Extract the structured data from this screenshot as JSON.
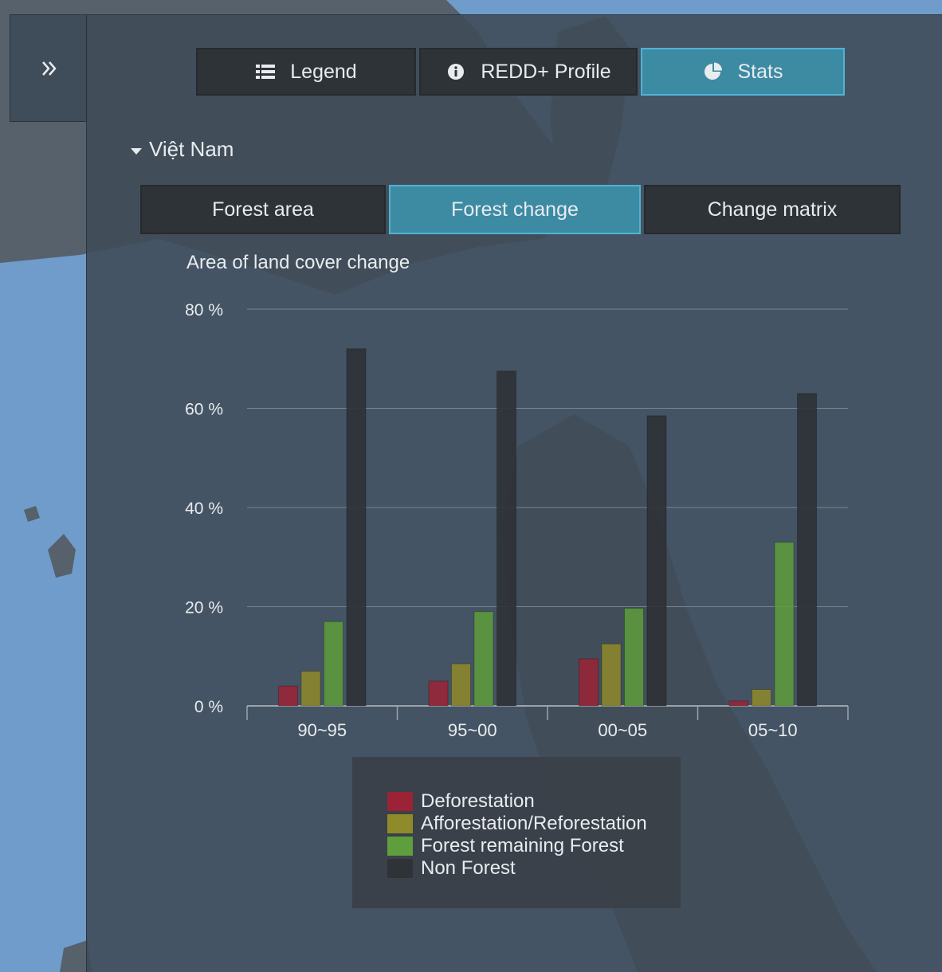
{
  "top_tabs": [
    {
      "label": "Legend",
      "icon": "list-icon",
      "active": false
    },
    {
      "label": "REDD+ Profile",
      "icon": "info-icon",
      "active": false
    },
    {
      "label": "Stats",
      "icon": "pie-chart-icon",
      "active": true
    }
  ],
  "collapse_icon": "double-chevron-right-icon",
  "section": {
    "title": "Việt Nam",
    "icon": "caret-down-icon"
  },
  "sub_tabs": [
    {
      "label": "Forest area",
      "active": false
    },
    {
      "label": "Forest change",
      "active": true
    },
    {
      "label": "Change matrix",
      "active": false
    }
  ],
  "colors": {
    "accent": "#3d8aa3",
    "deforestation": "#9b2335",
    "afforestation": "#8f8a2a",
    "forest_remaining": "#5e9e3c",
    "non_forest": "#2f3236"
  },
  "chart_data": {
    "type": "bar",
    "title": "Area of land cover change",
    "categories": [
      "90~95",
      "95~00",
      "00~05",
      "05~10"
    ],
    "ylim": [
      0,
      80
    ],
    "yticks": [
      0,
      20,
      40,
      60,
      80
    ],
    "ytick_labels": [
      "0 %",
      "20 %",
      "40 %",
      "60 %",
      "80 %"
    ],
    "grid": true,
    "legend_position": "bottom-center",
    "series": [
      {
        "name": "Deforestation",
        "color": "#9b2335",
        "values": [
          4,
          5,
          9.5,
          1
        ]
      },
      {
        "name": "Afforestation/Reforestation",
        "color": "#8f8a2a",
        "values": [
          7,
          8.5,
          12.5,
          3.3
        ]
      },
      {
        "name": "Forest remaining Forest",
        "color": "#5e9e3c",
        "values": [
          17,
          19,
          19.7,
          33
        ]
      },
      {
        "name": "Non Forest",
        "color": "#2f3236",
        "values": [
          72,
          67.5,
          58.5,
          63
        ]
      }
    ]
  }
}
